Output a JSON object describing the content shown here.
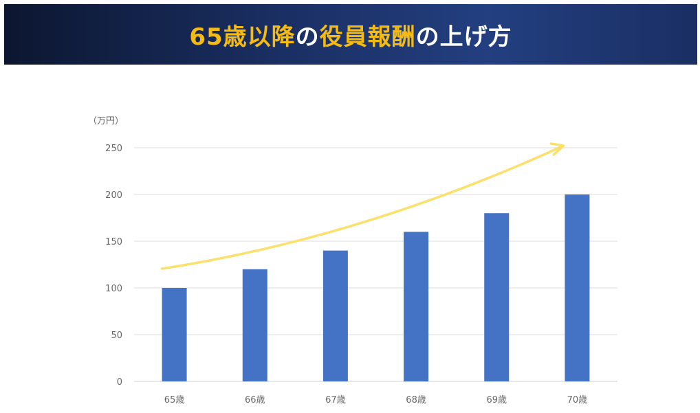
{
  "header": {
    "title_parts": [
      {
        "text": "65歳以降",
        "highlight": true
      },
      {
        "text": "の",
        "highlight": false
      },
      {
        "text": "役員報酬",
        "highlight": true
      },
      {
        "text": "の上げ方",
        "highlight": false
      }
    ]
  },
  "colors": {
    "bar": "#4472c4",
    "arrow": "#fbe06b",
    "title_highlight": "#f5bb13",
    "title_text": "#ffffff",
    "banner": "#1a2f63"
  },
  "chart_data": {
    "type": "bar",
    "unit_label": "（万円）",
    "categories": [
      "65歳",
      "66歳",
      "67歳",
      "68歳",
      "69歳",
      "70歳"
    ],
    "values": [
      100,
      120,
      140,
      160,
      180,
      200
    ],
    "ylim": [
      0,
      250
    ],
    "yticks": [
      0,
      50,
      100,
      150,
      200,
      250
    ],
    "grid": true,
    "trend_arrow": "upward"
  }
}
